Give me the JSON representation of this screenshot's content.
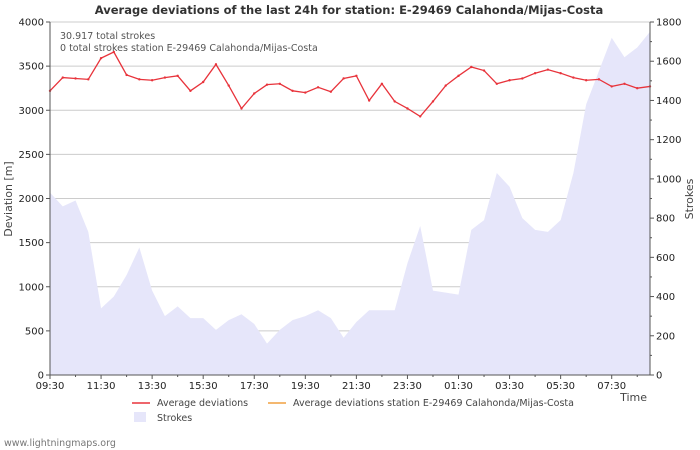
{
  "chart_data": {
    "type": "line",
    "title": "Average deviations of the last 24h for station: E-29469 Calahonda/Mijas-Costa",
    "info_lines": [
      "30.917 total strokes",
      "0 total strokes station E-29469 Calahonda/Mijas-Costa"
    ],
    "xlabel": "Time",
    "ylabel": "Deviation  [m]",
    "y2label": "Strokes",
    "x_tick_labels": [
      "09:30",
      "11:30",
      "13:30",
      "15:30",
      "17:30",
      "19:30",
      "21:30",
      "23:30",
      "01:30",
      "03:30",
      "05:30",
      "07:30"
    ],
    "ylim": [
      0,
      4000
    ],
    "y_ticks": [
      0,
      500,
      1000,
      1500,
      2000,
      2500,
      3000,
      3500,
      4000
    ],
    "y2lim": [
      0,
      1800
    ],
    "y2_ticks": [
      0,
      200,
      400,
      600,
      800,
      1000,
      1200,
      1400,
      1600,
      1800
    ],
    "n_points": 48,
    "series": [
      {
        "name": "Average deviations",
        "color": "#e8333b",
        "axis": "left",
        "values": [
          3220,
          3370,
          3360,
          3350,
          3590,
          3660,
          3400,
          3350,
          3340,
          3370,
          3390,
          3220,
          3320,
          3520,
          3280,
          3020,
          3190,
          3290,
          3300,
          3220,
          3200,
          3260,
          3210,
          3360,
          3390,
          3110,
          3300,
          3100,
          3020,
          2930,
          3100,
          3280,
          3390,
          3490,
          3450,
          3300,
          3340,
          3360,
          3420,
          3460,
          3420,
          3370,
          3340,
          3350,
          3270,
          3300,
          3250,
          3270
        ]
      },
      {
        "name": "Average deviations station E-29469 Calahonda/Mijas-Costa",
        "color": "#f0a040",
        "axis": "left",
        "values": []
      },
      {
        "name": "Strokes",
        "color": "#e6e6fa",
        "axis": "right",
        "type": "area",
        "values": [
          930,
          860,
          890,
          730,
          340,
          400,
          510,
          650,
          430,
          300,
          350,
          290,
          290,
          230,
          280,
          310,
          260,
          160,
          230,
          280,
          300,
          330,
          290,
          190,
          270,
          330,
          330,
          330,
          570,
          760,
          430,
          420,
          410,
          740,
          790,
          1030,
          960,
          800,
          740,
          730,
          790,
          1030,
          1380,
          1550,
          1720,
          1620,
          1670,
          1750
        ]
      }
    ],
    "legend_position": "bottom",
    "credit": "www.lightningmaps.org"
  }
}
